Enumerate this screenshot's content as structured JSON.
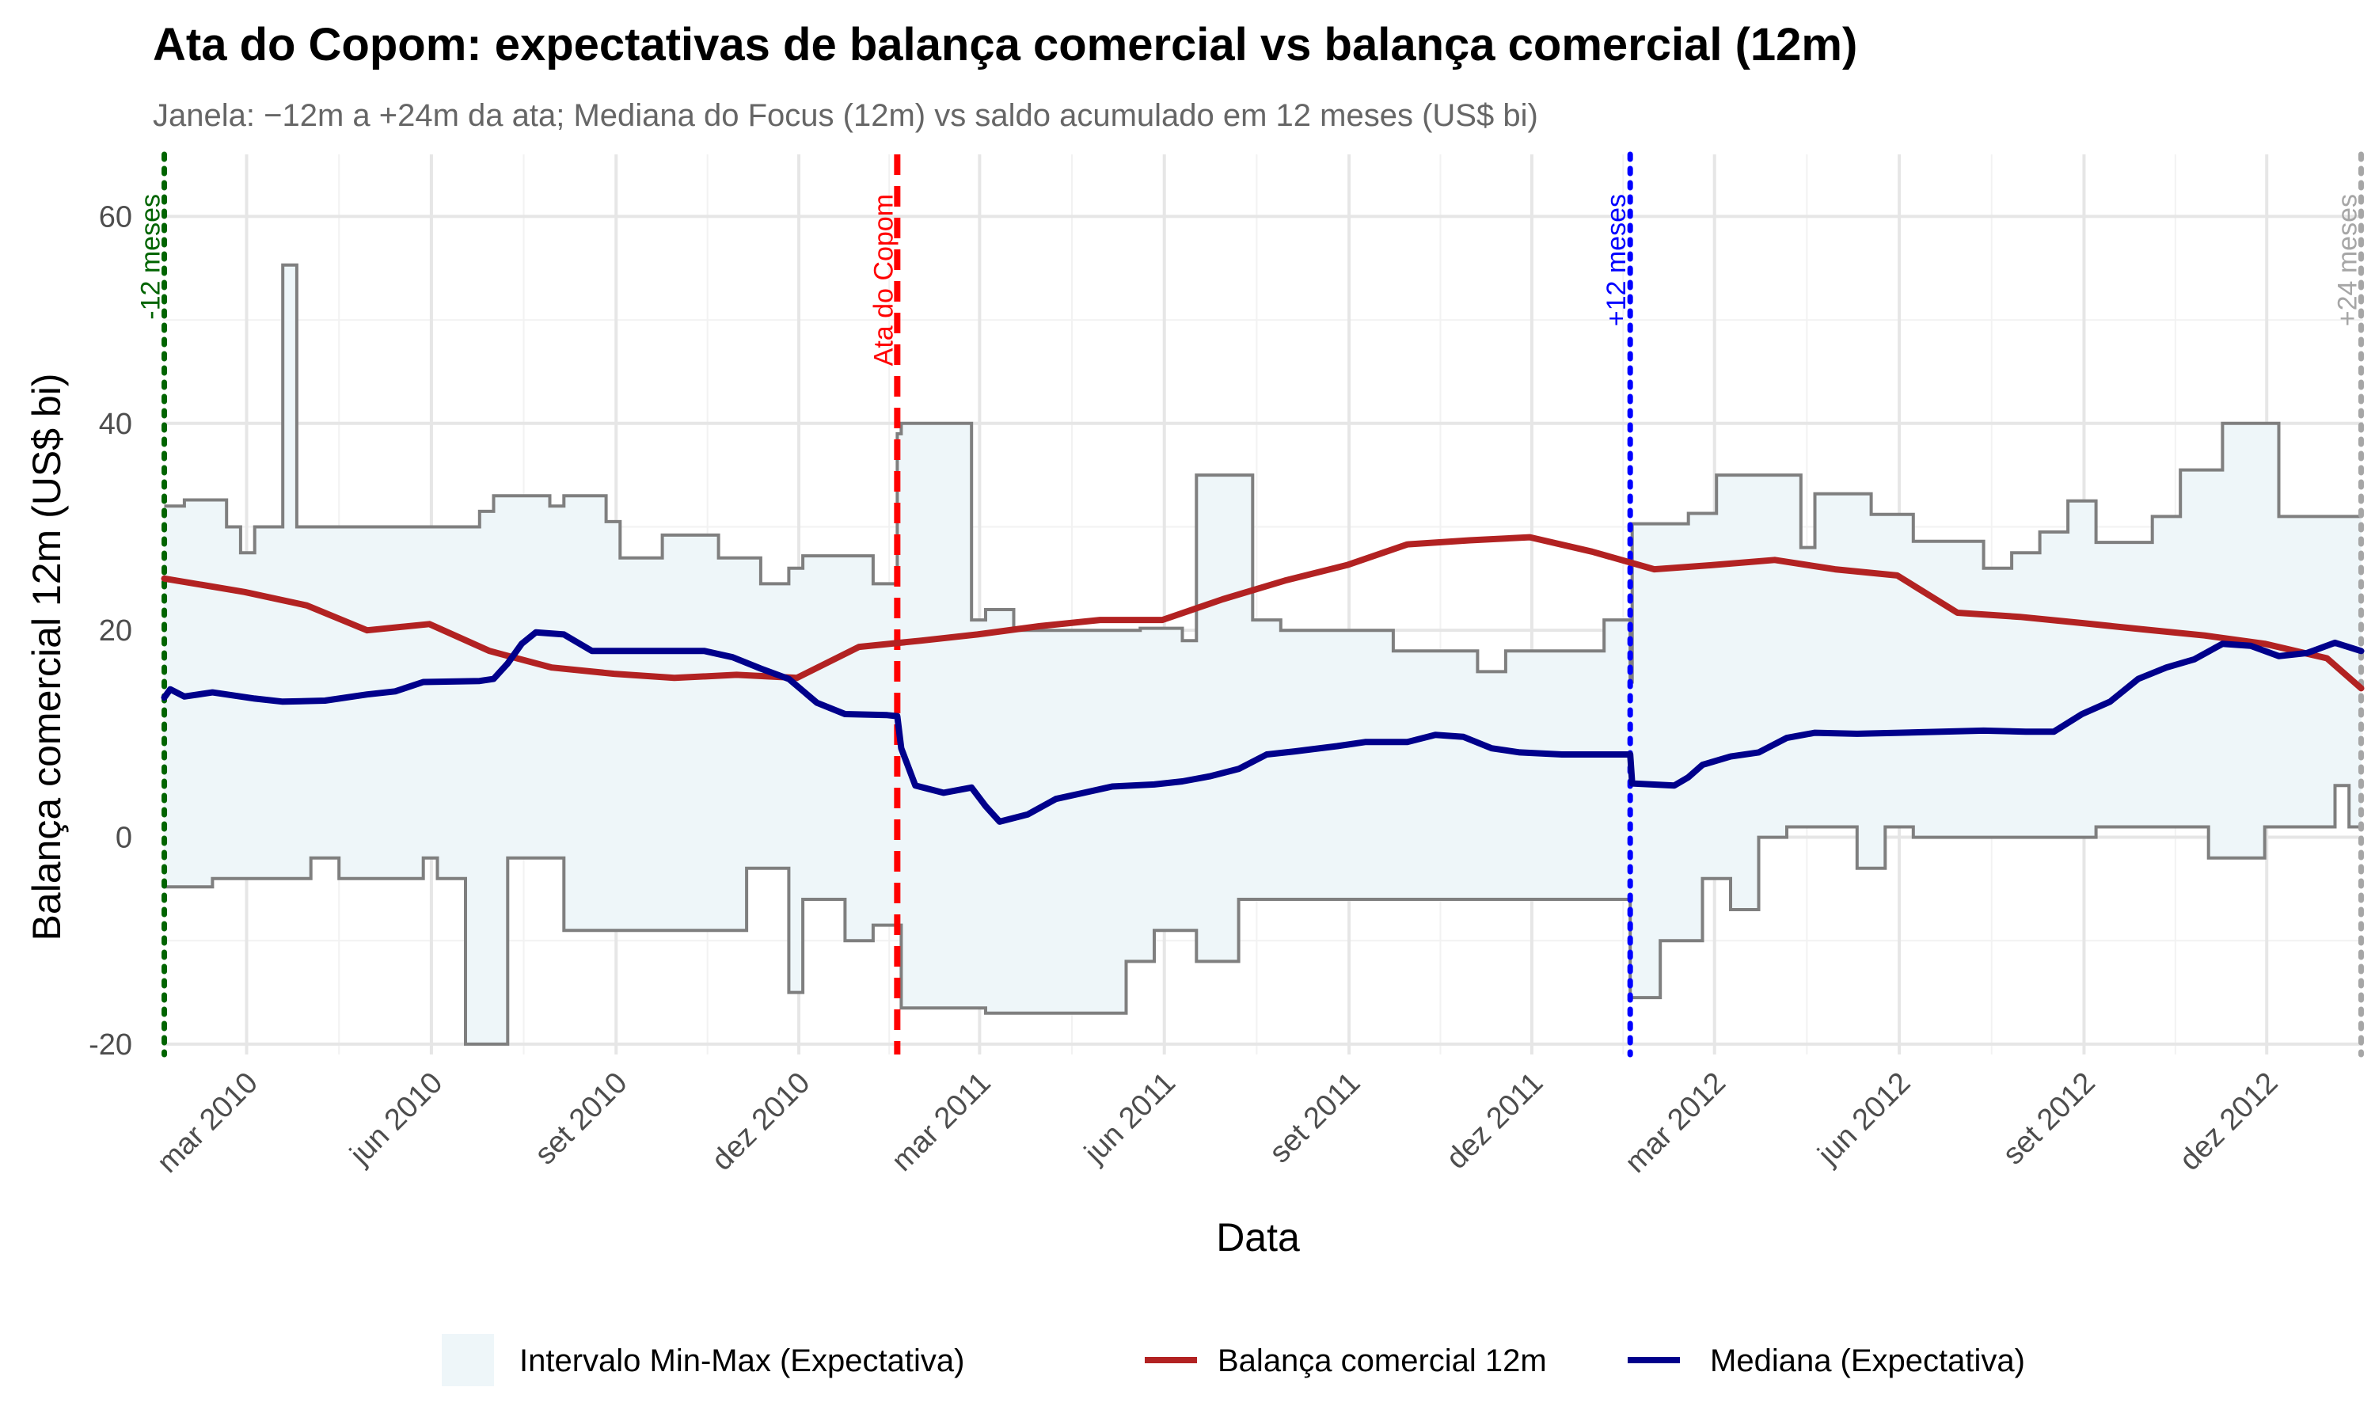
{
  "chart_data": {
    "type": "line",
    "title": "Ata do Copom: expectativas de balança comercial vs balança comercial (12m)",
    "subtitle": "Janela: −12m a +24m da ata; Mediana do Focus (12m) vs saldo acumulado em 12 meses (US$ bi)",
    "xlabel": "Data",
    "ylabel": "Balança comercial 12m (US$ bi)",
    "xlim": [
      "2010-01-18",
      "2013-01-18"
    ],
    "ylim": [
      -21,
      66
    ],
    "y_ticks": [
      -20,
      0,
      20,
      40,
      60
    ],
    "x_ticks": [
      {
        "date": "2010-03-01",
        "label": "mar 2010"
      },
      {
        "date": "2010-06-01",
        "label": "jun 2010"
      },
      {
        "date": "2010-09-01",
        "label": "set 2010"
      },
      {
        "date": "2010-12-01",
        "label": "dez 2010"
      },
      {
        "date": "2011-03-01",
        "label": "mar 2011"
      },
      {
        "date": "2011-06-01",
        "label": "jun 2011"
      },
      {
        "date": "2011-09-01",
        "label": "set 2011"
      },
      {
        "date": "2011-12-01",
        "label": "dez 2011"
      },
      {
        "date": "2012-03-01",
        "label": "mar 2012"
      },
      {
        "date": "2012-06-01",
        "label": "jun 2012"
      },
      {
        "date": "2012-09-01",
        "label": "set 2012"
      },
      {
        "date": "2012-12-01",
        "label": "dez 2012"
      }
    ],
    "grid": true,
    "legend": {
      "position": "bottom",
      "entries": [
        {
          "label": "Intervalo Min-Max (Expectativa)",
          "kind": "fill",
          "color": "#eef6f9"
        },
        {
          "label": "Balança comercial 12m",
          "kind": "line",
          "color": "#b22222"
        },
        {
          "label": "Mediana (Expectativa)",
          "kind": "line",
          "color": "#00008b"
        }
      ]
    },
    "vertical_lines": [
      {
        "date": "2010-01-19",
        "label": "-12 meses",
        "color": "#006400",
        "style": "dotted"
      },
      {
        "date": "2011-01-19",
        "label": "Ata do Copom",
        "color": "#ff0000",
        "style": "dashed"
      },
      {
        "date": "2012-01-19",
        "label": "+12 meses",
        "color": "#0000ff",
        "style": "dotted"
      },
      {
        "date": "2013-01-17",
        "label": "+24 meses",
        "color": "#a6a6a6",
        "style": "dotted"
      }
    ],
    "series": [
      {
        "name": "Balança comercial 12m",
        "color": "#b22222",
        "points": [
          [
            "2010-01-19",
            25.0
          ],
          [
            "2010-02-28",
            23.7
          ],
          [
            "2010-03-31",
            22.4
          ],
          [
            "2010-04-30",
            20.0
          ],
          [
            "2010-05-31",
            20.6
          ],
          [
            "2010-06-30",
            18.0
          ],
          [
            "2010-07-31",
            16.4
          ],
          [
            "2010-08-31",
            15.8
          ],
          [
            "2010-09-30",
            15.4
          ],
          [
            "2010-10-31",
            15.7
          ],
          [
            "2010-11-30",
            15.4
          ],
          [
            "2010-12-31",
            18.4
          ],
          [
            "2011-01-31",
            19.0
          ],
          [
            "2011-02-28",
            19.6
          ],
          [
            "2011-03-31",
            20.4
          ],
          [
            "2011-04-30",
            21.0
          ],
          [
            "2011-05-31",
            21.0
          ],
          [
            "2011-06-30",
            23.0
          ],
          [
            "2011-07-31",
            24.8
          ],
          [
            "2011-08-31",
            26.3
          ],
          [
            "2011-09-30",
            28.3
          ],
          [
            "2011-10-31",
            28.7
          ],
          [
            "2011-11-30",
            29.0
          ],
          [
            "2011-12-31",
            27.6
          ],
          [
            "2012-01-31",
            25.9
          ],
          [
            "2012-02-29",
            26.3
          ],
          [
            "2012-03-31",
            26.8
          ],
          [
            "2012-04-30",
            25.9
          ],
          [
            "2012-05-31",
            25.3
          ],
          [
            "2012-06-30",
            21.7
          ],
          [
            "2012-07-31",
            21.3
          ],
          [
            "2012-08-31",
            20.7
          ],
          [
            "2012-09-30",
            20.1
          ],
          [
            "2012-10-31",
            19.5
          ],
          [
            "2012-11-30",
            18.7
          ],
          [
            "2012-12-31",
            17.3
          ],
          [
            "2013-01-17",
            14.4
          ]
        ]
      },
      {
        "name": "Mediana (Expectativa)",
        "color": "#00008b",
        "points": [
          [
            "2010-01-19",
            13.5
          ],
          [
            "2010-01-22",
            14.3
          ],
          [
            "2010-01-29",
            13.6
          ],
          [
            "2010-02-12",
            14.0
          ],
          [
            "2010-03-05",
            13.4
          ],
          [
            "2010-03-19",
            13.1
          ],
          [
            "2010-04-09",
            13.2
          ],
          [
            "2010-04-30",
            13.8
          ],
          [
            "2010-05-14",
            14.1
          ],
          [
            "2010-05-28",
            15.0
          ],
          [
            "2010-06-25",
            15.1
          ],
          [
            "2010-07-02",
            15.3
          ],
          [
            "2010-07-09",
            16.8
          ],
          [
            "2010-07-16",
            18.7
          ],
          [
            "2010-07-23",
            19.8
          ],
          [
            "2010-08-06",
            19.6
          ],
          [
            "2010-08-20",
            18.0
          ],
          [
            "2010-09-10",
            18.0
          ],
          [
            "2010-10-15",
            18.0
          ],
          [
            "2010-10-29",
            17.4
          ],
          [
            "2010-11-12",
            16.3
          ],
          [
            "2010-11-26",
            15.3
          ],
          [
            "2010-12-10",
            13.0
          ],
          [
            "2010-12-24",
            11.9
          ],
          [
            "2011-01-14",
            11.8
          ],
          [
            "2011-01-19",
            11.7
          ],
          [
            "2011-01-21",
            8.6
          ],
          [
            "2011-01-28",
            5.0
          ],
          [
            "2011-02-11",
            4.3
          ],
          [
            "2011-02-25",
            4.8
          ],
          [
            "2011-03-04",
            3.0
          ],
          [
            "2011-03-11",
            1.5
          ],
          [
            "2011-03-25",
            2.2
          ],
          [
            "2011-04-08",
            3.7
          ],
          [
            "2011-04-22",
            4.3
          ],
          [
            "2011-05-06",
            4.9
          ],
          [
            "2011-05-27",
            5.1
          ],
          [
            "2011-06-10",
            5.4
          ],
          [
            "2011-06-24",
            5.9
          ],
          [
            "2011-07-08",
            6.6
          ],
          [
            "2011-07-22",
            8.0
          ],
          [
            "2011-08-05",
            8.3
          ],
          [
            "2011-08-26",
            8.8
          ],
          [
            "2011-09-09",
            9.2
          ],
          [
            "2011-09-30",
            9.2
          ],
          [
            "2011-10-14",
            9.9
          ],
          [
            "2011-10-28",
            9.7
          ],
          [
            "2011-11-11",
            8.6
          ],
          [
            "2011-11-25",
            8.2
          ],
          [
            "2011-12-16",
            8.0
          ],
          [
            "2012-01-13",
            8.0
          ],
          [
            "2012-01-19",
            8.0
          ],
          [
            "2012-01-20",
            5.2
          ],
          [
            "2012-02-10",
            5.0
          ],
          [
            "2012-02-17",
            5.8
          ],
          [
            "2012-02-24",
            7.0
          ],
          [
            "2012-03-09",
            7.8
          ],
          [
            "2012-03-23",
            8.2
          ],
          [
            "2012-04-06",
            9.6
          ],
          [
            "2012-04-20",
            10.1
          ],
          [
            "2012-05-11",
            10.0
          ],
          [
            "2012-06-01",
            10.1
          ],
          [
            "2012-06-22",
            10.2
          ],
          [
            "2012-07-13",
            10.3
          ],
          [
            "2012-08-03",
            10.2
          ],
          [
            "2012-08-17",
            10.2
          ],
          [
            "2012-08-31",
            11.9
          ],
          [
            "2012-09-14",
            13.1
          ],
          [
            "2012-09-28",
            15.3
          ],
          [
            "2012-10-12",
            16.4
          ],
          [
            "2012-10-26",
            17.2
          ],
          [
            "2012-11-09",
            18.7
          ],
          [
            "2012-11-23",
            18.5
          ],
          [
            "2012-12-07",
            17.5
          ],
          [
            "2012-12-21",
            17.8
          ],
          [
            "2013-01-04",
            18.8
          ],
          [
            "2013-01-17",
            18.0
          ]
        ]
      }
    ],
    "band": {
      "name": "Intervalo Min-Max (Expectativa)",
      "color": "#eef6f9",
      "edge_color": "#7f7f7f",
      "upper": [
        [
          "2010-01-19",
          32.0
        ],
        [
          "2010-01-29",
          32.6
        ],
        [
          "2010-02-19",
          30.0
        ],
        [
          "2010-02-26",
          27.5
        ],
        [
          "2010-03-05",
          30.0
        ],
        [
          "2010-03-19",
          55.3
        ],
        [
          "2010-03-26",
          30.0
        ],
        [
          "2010-05-07",
          30.0
        ],
        [
          "2010-06-25",
          31.5
        ],
        [
          "2010-07-02",
          33.0
        ],
        [
          "2010-07-30",
          32.0
        ],
        [
          "2010-08-06",
          33.0
        ],
        [
          "2010-08-27",
          30.5
        ],
        [
          "2010-09-03",
          27.0
        ],
        [
          "2010-09-24",
          29.2
        ],
        [
          "2010-10-22",
          27.0
        ],
        [
          "2010-11-12",
          24.5
        ],
        [
          "2010-11-26",
          26.0
        ],
        [
          "2010-12-03",
          27.2
        ],
        [
          "2011-01-07",
          24.5
        ],
        [
          "2011-01-19",
          39.0
        ],
        [
          "2011-01-21",
          40.0
        ],
        [
          "2011-02-25",
          21.0
        ],
        [
          "2011-03-04",
          22.0
        ],
        [
          "2011-03-18",
          20.0
        ],
        [
          "2011-04-08",
          20.0
        ],
        [
          "2011-05-20",
          20.2
        ],
        [
          "2011-06-10",
          19.0
        ],
        [
          "2011-06-17",
          35.0
        ],
        [
          "2011-07-15",
          21.0
        ],
        [
          "2011-07-29",
          20.0
        ],
        [
          "2011-09-09",
          20.0
        ],
        [
          "2011-09-23",
          18.0
        ],
        [
          "2011-11-04",
          16.0
        ],
        [
          "2011-11-18",
          18.0
        ],
        [
          "2012-01-06",
          21.0
        ],
        [
          "2012-01-19",
          15.0
        ],
        [
          "2012-01-20",
          30.3
        ],
        [
          "2012-02-17",
          31.3
        ],
        [
          "2012-03-02",
          35.0
        ],
        [
          "2012-04-13",
          28.0
        ],
        [
          "2012-04-20",
          33.2
        ],
        [
          "2012-05-18",
          31.2
        ],
        [
          "2012-06-08",
          28.6
        ],
        [
          "2012-07-13",
          26.0
        ],
        [
          "2012-07-27",
          27.5
        ],
        [
          "2012-08-10",
          29.5
        ],
        [
          "2012-08-24",
          32.5
        ],
        [
          "2012-09-07",
          28.5
        ],
        [
          "2012-10-05",
          31.0
        ],
        [
          "2012-10-19",
          35.5
        ],
        [
          "2012-11-09",
          40.0
        ],
        [
          "2012-12-07",
          31.0
        ],
        [
          "2013-01-17",
          31.0
        ]
      ],
      "lower": [
        [
          "2010-01-19",
          -4.8
        ],
        [
          "2010-02-12",
          -4.0
        ],
        [
          "2010-03-19",
          -4.0
        ],
        [
          "2010-04-02",
          -2.0
        ],
        [
          "2010-04-16",
          -4.0
        ],
        [
          "2010-05-28",
          -2.0
        ],
        [
          "2010-06-04",
          -4.0
        ],
        [
          "2010-06-18",
          -20.0
        ],
        [
          "2010-07-09",
          -2.0
        ],
        [
          "2010-08-06",
          -9.0
        ],
        [
          "2010-10-29",
          -9.0
        ],
        [
          "2010-11-05",
          -3.0
        ],
        [
          "2010-11-26",
          -15.0
        ],
        [
          "2010-12-03",
          -6.0
        ],
        [
          "2010-12-24",
          -10.0
        ],
        [
          "2011-01-07",
          -8.5
        ],
        [
          "2011-01-21",
          -16.5
        ],
        [
          "2011-03-04",
          -17.0
        ],
        [
          "2011-04-22",
          -17.0
        ],
        [
          "2011-05-13",
          -12.0
        ],
        [
          "2011-05-27",
          -9.0
        ],
        [
          "2011-06-17",
          -12.0
        ],
        [
          "2011-07-08",
          -6.0
        ],
        [
          "2011-09-16",
          -6.0
        ],
        [
          "2011-12-30",
          -6.0
        ],
        [
          "2012-01-19",
          -15.5
        ],
        [
          "2012-02-03",
          -10.0
        ],
        [
          "2012-02-24",
          -4.0
        ],
        [
          "2012-03-09",
          -7.0
        ],
        [
          "2012-03-23",
          0.0
        ],
        [
          "2012-04-06",
          1.0
        ],
        [
          "2012-05-11",
          -3.0
        ],
        [
          "2012-05-25",
          1.0
        ],
        [
          "2012-06-08",
          0.0
        ],
        [
          "2012-09-07",
          1.0
        ],
        [
          "2012-11-02",
          -2.0
        ],
        [
          "2012-11-30",
          1.0
        ],
        [
          "2013-01-04",
          5.0
        ],
        [
          "2013-01-11",
          1.0
        ],
        [
          "2013-01-17",
          1.0
        ]
      ]
    }
  }
}
